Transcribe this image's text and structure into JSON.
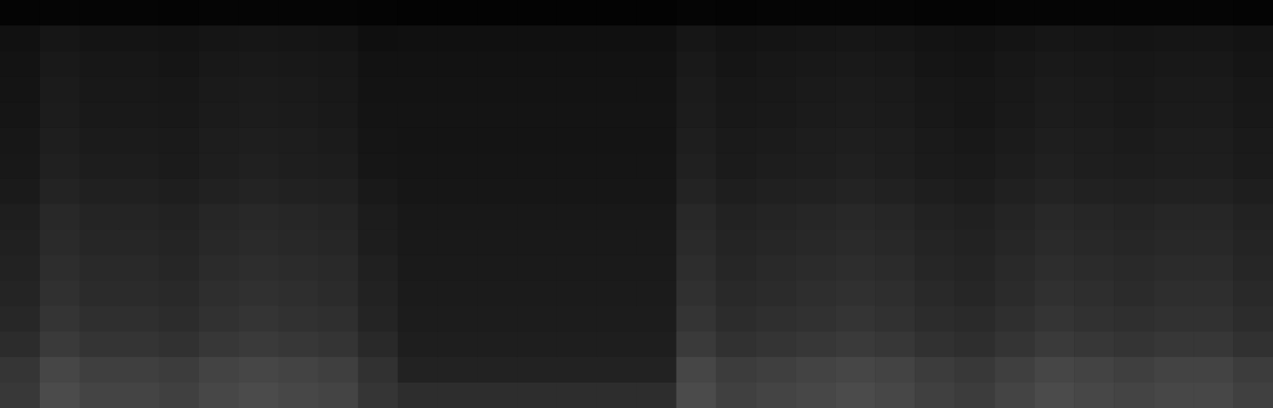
{
  "chart_data": {
    "type": "heatmap",
    "tick_labels": false,
    "cells": [
      [
        4,
        5,
        5,
        5,
        4,
        5,
        5,
        5,
        5,
        4,
        3,
        3,
        3,
        3,
        3,
        3,
        3,
        5,
        4,
        5,
        5,
        5,
        5,
        4,
        4,
        5,
        5,
        5,
        5,
        5,
        5,
        4
      ],
      [
        17,
        22,
        20,
        20,
        19,
        21,
        22,
        21,
        20,
        15,
        16,
        16,
        16,
        16,
        16,
        16,
        16,
        22,
        19,
        20,
        21,
        22,
        21,
        19,
        18,
        20,
        22,
        21,
        20,
        21,
        21,
        19
      ],
      [
        19,
        25,
        23,
        23,
        21,
        24,
        25,
        24,
        23,
        18,
        18,
        18,
        18,
        18,
        18,
        18,
        18,
        25,
        21,
        23,
        24,
        25,
        24,
        21,
        20,
        23,
        25,
        24,
        23,
        24,
        24,
        21
      ],
      [
        20,
        27,
        24,
        24,
        23,
        26,
        27,
        26,
        24,
        19,
        19,
        19,
        19,
        19,
        19,
        19,
        19,
        27,
        23,
        24,
        26,
        27,
        26,
        23,
        22,
        24,
        27,
        26,
        24,
        26,
        26,
        23
      ],
      [
        21,
        28,
        25,
        25,
        24,
        27,
        28,
        27,
        25,
        20,
        20,
        20,
        20,
        20,
        20,
        20,
        20,
        28,
        24,
        25,
        27,
        28,
        27,
        24,
        22,
        25,
        28,
        27,
        25,
        27,
        27,
        24
      ],
      [
        23,
        30,
        27,
        27,
        26,
        29,
        30,
        29,
        27,
        21,
        20,
        20,
        20,
        20,
        20,
        20,
        20,
        30,
        26,
        27,
        29,
        30,
        29,
        26,
        24,
        27,
        30,
        29,
        27,
        29,
        29,
        26
      ],
      [
        24,
        32,
        29,
        29,
        27,
        30,
        32,
        30,
        29,
        22,
        21,
        21,
        21,
        21,
        21,
        21,
        21,
        32,
        27,
        29,
        30,
        32,
        30,
        27,
        26,
        29,
        32,
        30,
        29,
        30,
        30,
        27
      ],
      [
        26,
        35,
        32,
        32,
        30,
        33,
        35,
        33,
        32,
        25,
        22,
        22,
        22,
        22,
        22,
        22,
        22,
        35,
        30,
        32,
        33,
        35,
        33,
        30,
        28,
        32,
        35,
        33,
        32,
        33,
        33,
        30
      ],
      [
        30,
        40,
        36,
        36,
        34,
        38,
        40,
        38,
        36,
        28,
        24,
        24,
        24,
        24,
        24,
        24,
        24,
        40,
        34,
        36,
        38,
        40,
        38,
        34,
        32,
        36,
        40,
        38,
        36,
        38,
        38,
        34
      ],
      [
        32,
        42,
        38,
        38,
        36,
        40,
        42,
        40,
        38,
        29,
        25,
        25,
        25,
        25,
        25,
        25,
        25,
        42,
        36,
        38,
        40,
        42,
        40,
        36,
        34,
        38,
        42,
        40,
        38,
        40,
        40,
        36
      ],
      [
        34,
        45,
        41,
        41,
        38,
        43,
        45,
        43,
        41,
        32,
        26,
        26,
        26,
        26,
        26,
        26,
        26,
        45,
        38,
        41,
        43,
        45,
        43,
        38,
        36,
        41,
        45,
        43,
        41,
        43,
        43,
        38
      ],
      [
        36,
        48,
        43,
        43,
        41,
        46,
        48,
        46,
        43,
        34,
        27,
        27,
        27,
        27,
        27,
        27,
        27,
        48,
        41,
        43,
        46,
        48,
        46,
        41,
        38,
        43,
        48,
        46,
        43,
        46,
        46,
        41
      ],
      [
        39,
        52,
        47,
        47,
        44,
        49,
        52,
        49,
        47,
        36,
        28,
        28,
        28,
        28,
        28,
        28,
        28,
        52,
        44,
        47,
        49,
        52,
        49,
        44,
        42,
        47,
        52,
        49,
        47,
        49,
        49,
        44
      ],
      [
        44,
        58,
        52,
        52,
        49,
        55,
        58,
        55,
        52,
        41,
        30,
        30,
        30,
        30,
        30,
        30,
        30,
        58,
        49,
        52,
        55,
        58,
        55,
        49,
        46,
        52,
        58,
        55,
        52,
        55,
        55,
        49
      ],
      [
        53,
        70,
        63,
        63,
        60,
        67,
        70,
        67,
        63,
        49,
        34,
        34,
        34,
        34,
        34,
        34,
        34,
        70,
        60,
        63,
        67,
        70,
        67,
        60,
        56,
        63,
        70,
        67,
        63,
        67,
        67,
        60
      ],
      [
        56,
        75,
        68,
        68,
        64,
        71,
        75,
        71,
        68,
        53,
        45,
        45,
        45,
        45,
        45,
        45,
        45,
        75,
        64,
        68,
        71,
        75,
        71,
        64,
        60,
        68,
        75,
        71,
        68,
        71,
        71,
        64
      ]
    ]
  }
}
